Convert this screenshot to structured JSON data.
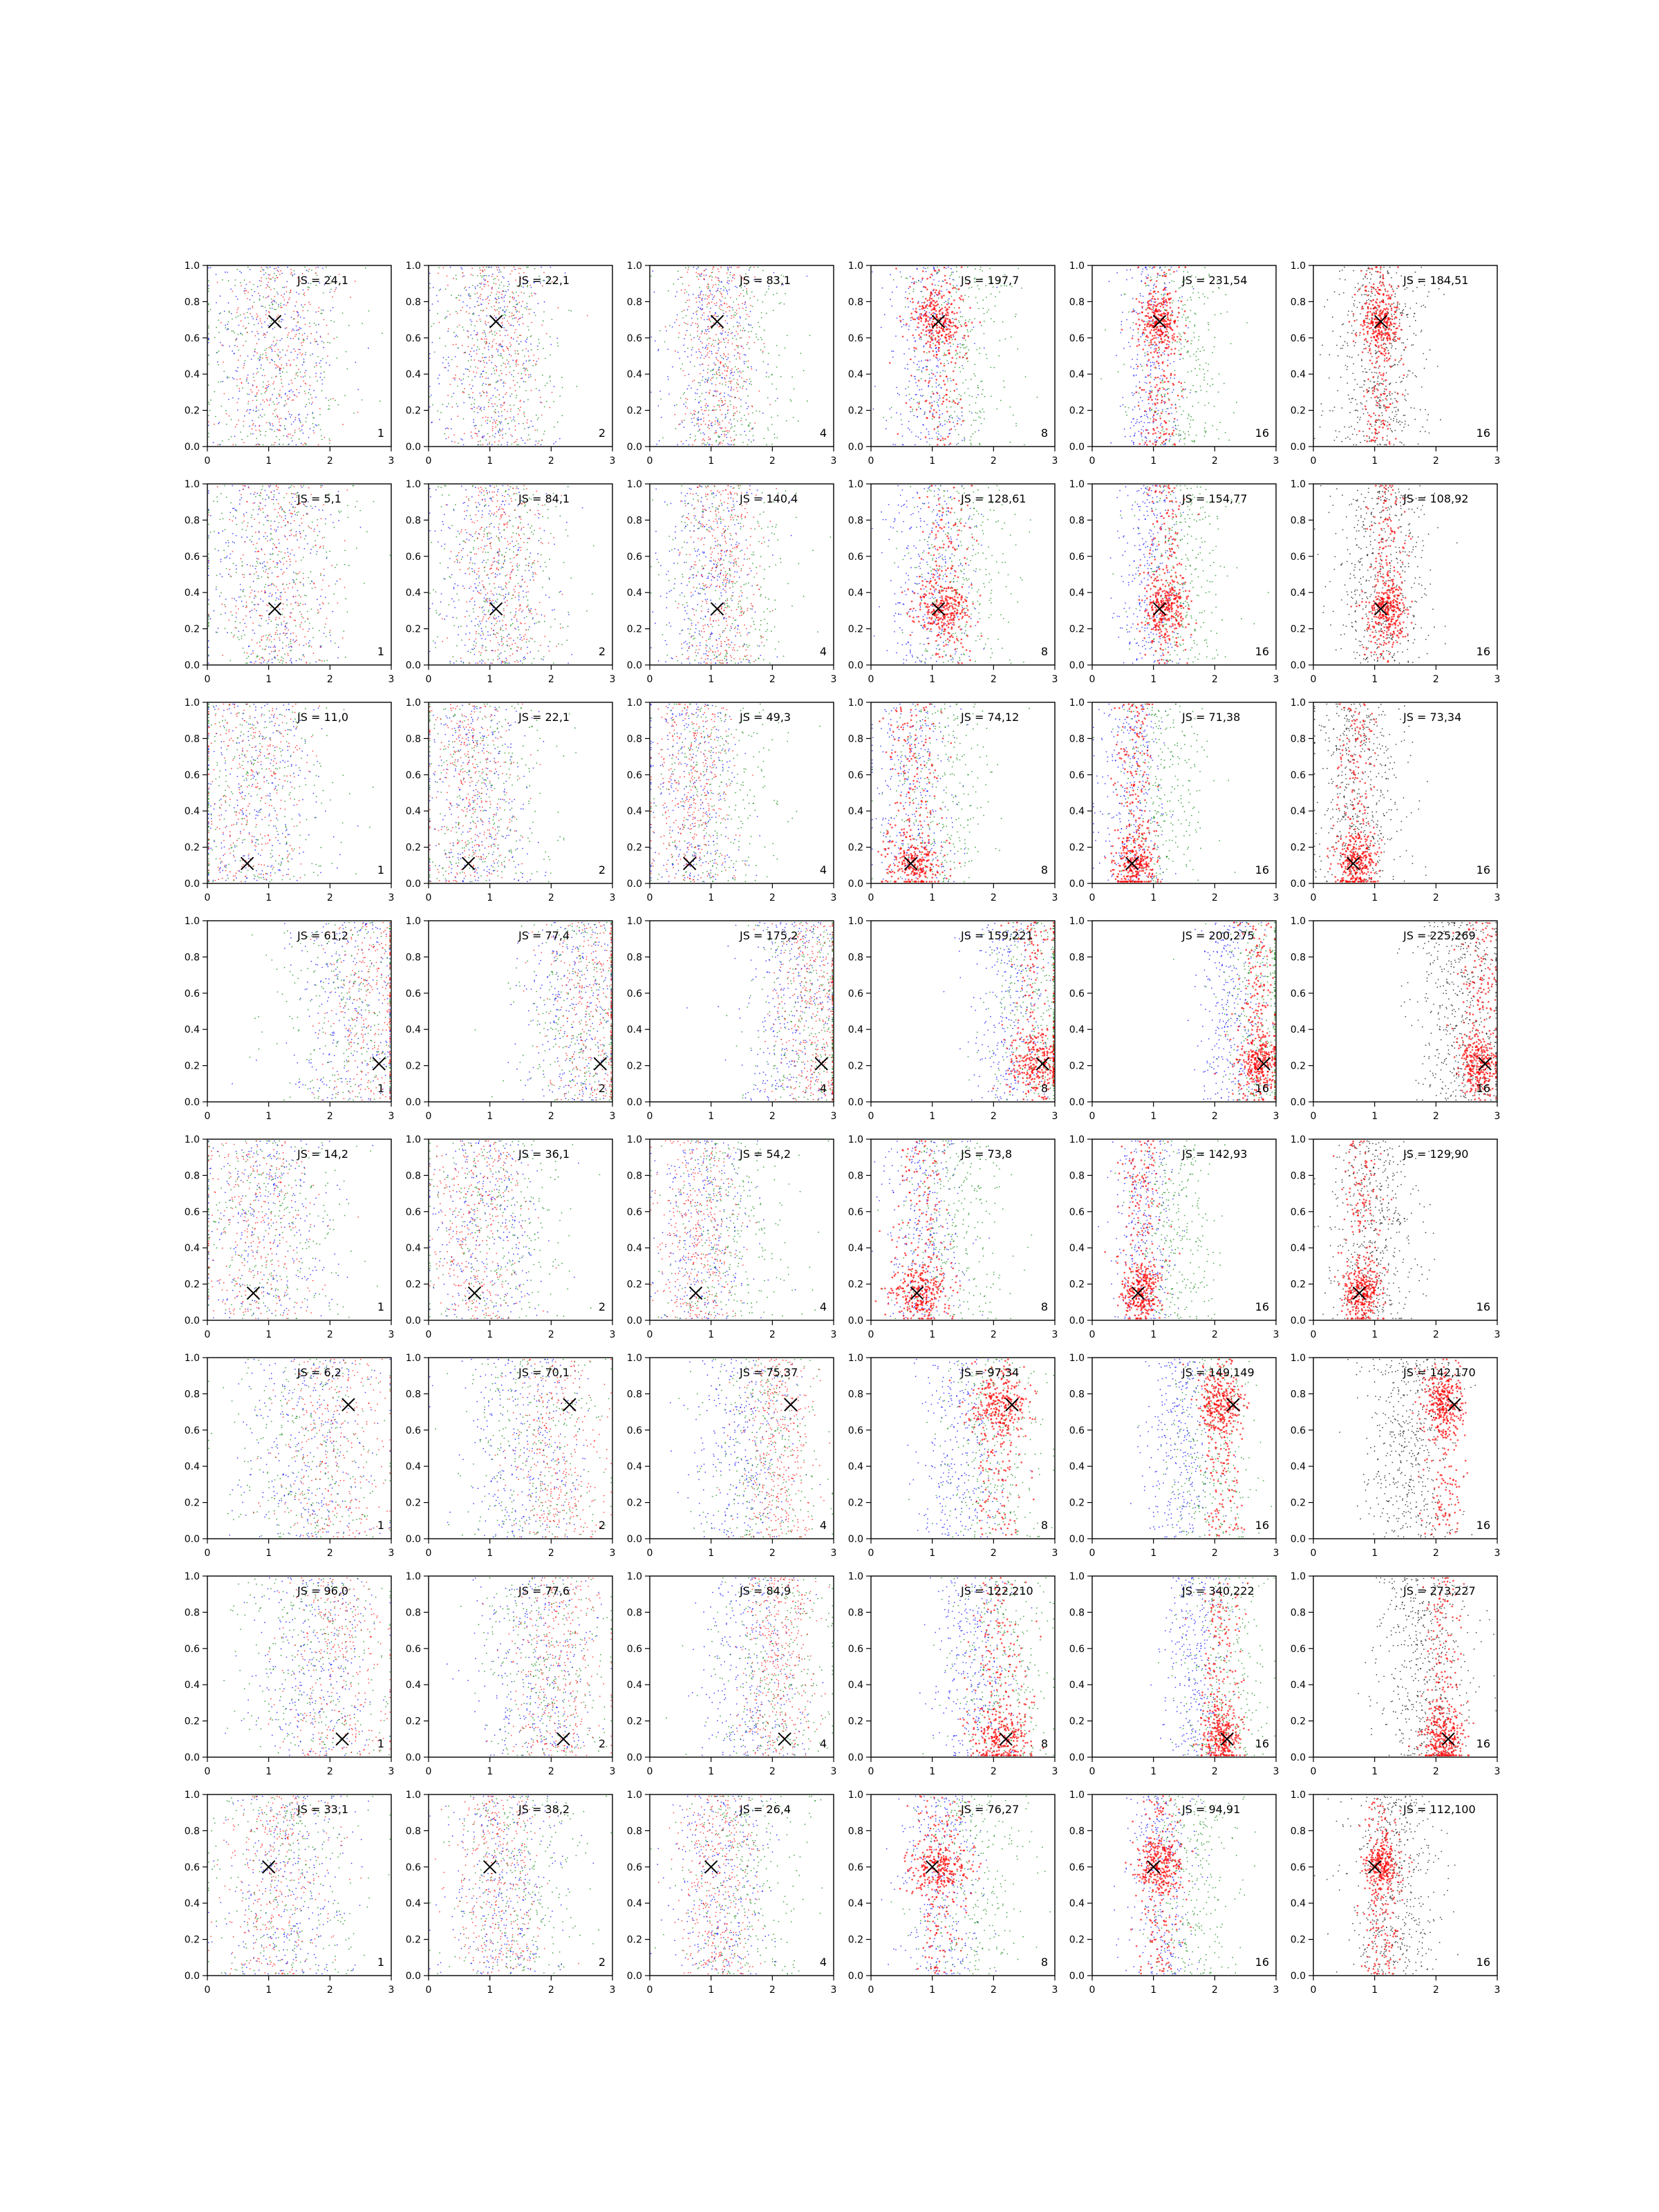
{
  "figure": {
    "rows": 8,
    "cols": 6
  },
  "colors": {
    "blue": "#0000ff",
    "green": "#008000",
    "red": "#ff0000",
    "black": "#000000"
  },
  "chart_data": {
    "type": "scatter",
    "xlim": [
      0,
      3
    ],
    "ylim": [
      0,
      1
    ],
    "x_ticks": [
      "0",
      "1",
      "2",
      "3"
    ],
    "y_ticks": [
      "0.0",
      "0.2",
      "0.4",
      "0.6",
      "0.8",
      "1.0"
    ],
    "grid": false,
    "marker": "x",
    "rows": [
      {
        "marker": [
          1.1,
          0.69
        ],
        "labels": [
          "JS = 24,1",
          "JS = 22,1",
          "JS = 83,1",
          "JS = 197,7",
          "JS = 231,54",
          "JS = 184,51"
        ],
        "corner": [
          "1",
          "2",
          "4",
          "8",
          "16",
          "16"
        ]
      },
      {
        "marker": [
          1.1,
          0.31
        ],
        "labels": [
          "JS = 5,1",
          "JS = 84,1",
          "JS = 140,4",
          "JS = 128,61",
          "JS = 154,77",
          "JS = 108,92"
        ],
        "corner": [
          "1",
          "2",
          "4",
          "8",
          "16",
          "16"
        ]
      },
      {
        "marker": [
          0.65,
          0.11
        ],
        "labels": [
          "JS = 11,0",
          "JS = 22,1",
          "JS = 49,3",
          "JS = 74,12",
          "JS = 71,38",
          "JS = 73,34"
        ],
        "corner": [
          "1",
          "2",
          "4",
          "8",
          "16",
          "16"
        ]
      },
      {
        "marker": [
          2.8,
          0.21
        ],
        "labels": [
          "JS = 61,2",
          "JS = 77,4",
          "JS = 175,2",
          "JS = 159,221",
          "JS = 200,275",
          "JS = 225,269"
        ],
        "corner": [
          "1",
          "2",
          "4",
          "8",
          "16",
          "16"
        ]
      },
      {
        "marker": [
          0.75,
          0.15
        ],
        "labels": [
          "JS = 14,2",
          "JS = 36,1",
          "JS = 54,2",
          "JS = 73,8",
          "JS = 142,93",
          "JS = 129,90"
        ],
        "corner": [
          "1",
          "2",
          "4",
          "8",
          "16",
          "16"
        ]
      },
      {
        "marker": [
          2.3,
          0.74
        ],
        "labels": [
          "JS = 6,2",
          "JS = 70,1",
          "JS = 75,37",
          "JS = 97,34",
          "JS = 149,149",
          "JS = 142,170"
        ],
        "corner": [
          "1",
          "2",
          "4",
          "8",
          "16",
          "16"
        ]
      },
      {
        "marker": [
          2.2,
          0.1
        ],
        "labels": [
          "JS = 96,0",
          "JS = 77,6",
          "JS = 84,9",
          "JS = 122,210",
          "JS = 340,222",
          "JS = 273,227"
        ],
        "corner": [
          "1",
          "2",
          "4",
          "8",
          "16",
          "16"
        ]
      },
      {
        "marker": [
          1.0,
          0.6
        ],
        "labels": [
          "JS = 33,1",
          "JS = 38,2",
          "JS = 26,4",
          "JS = 76,27",
          "JS = 94,91",
          "JS = 112,100"
        ],
        "corner": [
          "1",
          "2",
          "4",
          "8",
          "16",
          "16"
        ]
      }
    ]
  }
}
